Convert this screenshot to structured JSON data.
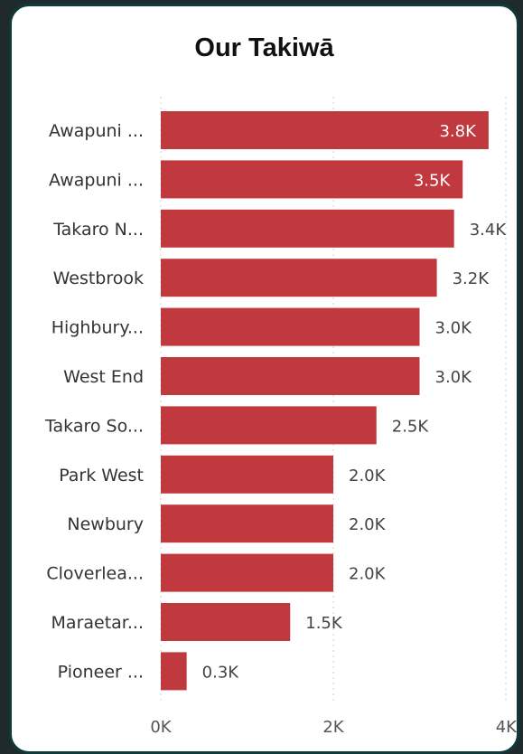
{
  "page_title": "Our Takiwā",
  "colors": {
    "bar": "#c0393f",
    "inside_label": "#ffffff",
    "outside_label": "#444444",
    "axis_label": "#555555",
    "grid": "#d8d8d8",
    "border": "#0f3a3c",
    "background": "#1f2a2c"
  },
  "chart_data": {
    "type": "bar",
    "orientation": "horizontal",
    "title": "Our Takiwā",
    "categories": [
      "Awapuni ...",
      "Awapuni ...",
      "Takaro N...",
      "Westbrook",
      "Highbury...",
      "West End",
      "Takaro So...",
      "Park West",
      "Newbury",
      "Cloverlea...",
      "Maraetar...",
      "Pioneer ..."
    ],
    "values": [
      3800,
      3500,
      3400,
      3200,
      3000,
      3000,
      2500,
      2000,
      2000,
      2000,
      1500,
      300
    ],
    "data_labels": [
      "3.8K",
      "3.5K",
      "3.4K",
      "3.2K",
      "3.0K",
      "3.0K",
      "2.5K",
      "2.0K",
      "2.0K",
      "2.0K",
      "1.5K",
      "0.3K"
    ],
    "xlim": [
      0,
      4000
    ],
    "xticks": [
      0,
      2000,
      4000
    ],
    "xtick_labels": [
      "0K",
      "2K",
      "4K"
    ],
    "grid": true,
    "legend": "none"
  }
}
